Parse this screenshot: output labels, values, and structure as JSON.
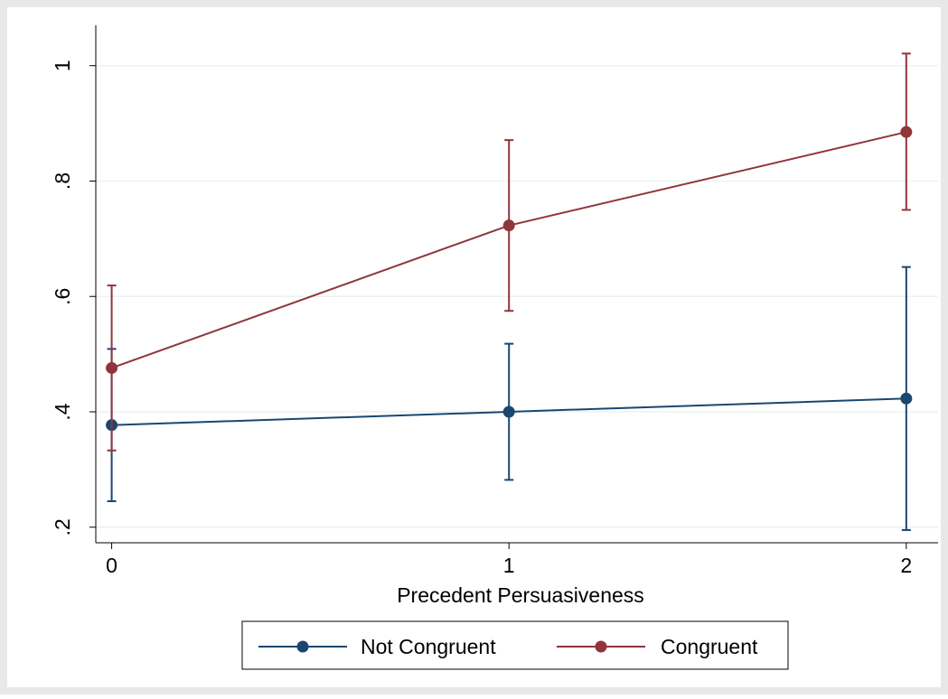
{
  "chart_data": {
    "type": "line",
    "title": "",
    "xlabel": "Precedent Persuasiveness",
    "ylabel": "",
    "x": [
      0,
      1,
      2
    ],
    "x_tick_labels": [
      "0",
      "1",
      "2"
    ],
    "y_tick_values": [
      0.2,
      0.4,
      0.6,
      0.8,
      1.0
    ],
    "y_tick_labels": [
      ".2",
      ".4",
      ".6",
      ".8",
      "1"
    ],
    "xlim": [
      -0.04,
      2.08
    ],
    "ylim": [
      0.173,
      1.07
    ],
    "grid": true,
    "legend_position": "bottom",
    "series": [
      {
        "name": "Not Congruent",
        "color": "#1a476f",
        "values": [
          0.377,
          0.4,
          0.423
        ],
        "ci_low": [
          0.245,
          0.282,
          0.195
        ],
        "ci_high": [
          0.509,
          0.518,
          0.651
        ]
      },
      {
        "name": "Congruent",
        "color": "#90353b",
        "values": [
          0.476,
          0.723,
          0.885
        ],
        "ci_low": [
          0.333,
          0.575,
          0.75
        ],
        "ci_high": [
          0.619,
          0.871,
          1.021
        ]
      }
    ]
  },
  "colors": {
    "outer_background": "#e8e8e8",
    "plot_background": "#ffffff",
    "gridline": "#eaf2f3"
  }
}
